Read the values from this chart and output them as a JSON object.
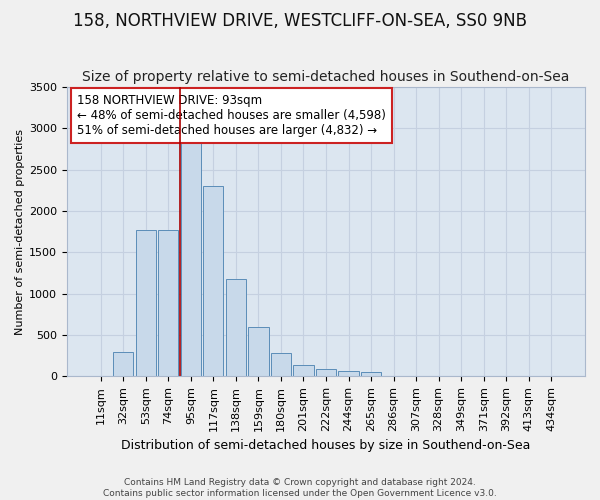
{
  "title": "158, NORTHVIEW DRIVE, WESTCLIFF-ON-SEA, SS0 9NB",
  "subtitle": "Size of property relative to semi-detached houses in Southend-on-Sea",
  "xlabel": "Distribution of semi-detached houses by size in Southend-on-Sea",
  "ylabel": "Number of semi-detached properties",
  "footer_line1": "Contains HM Land Registry data © Crown copyright and database right 2024.",
  "footer_line2": "Contains public sector information licensed under the Open Government Licence v3.0.",
  "annotation_line1": "158 NORTHVIEW DRIVE: 93sqm",
  "annotation_line2": "← 48% of semi-detached houses are smaller (4,598)",
  "annotation_line3": "51% of semi-detached houses are larger (4,832) →",
  "bar_labels": [
    "11sqm",
    "32sqm",
    "53sqm",
    "74sqm",
    "95sqm",
    "117sqm",
    "138sqm",
    "159sqm",
    "180sqm",
    "201sqm",
    "222sqm",
    "244sqm",
    "265sqm",
    "286sqm",
    "307sqm",
    "328sqm",
    "349sqm",
    "371sqm",
    "392sqm",
    "413sqm",
    "434sqm"
  ],
  "bar_values": [
    5,
    300,
    1775,
    1775,
    2900,
    2300,
    1175,
    600,
    285,
    140,
    90,
    60,
    50,
    0,
    0,
    0,
    0,
    0,
    0,
    0,
    0
  ],
  "bar_color": "#c8d9ea",
  "bar_edge_color": "#5b8db8",
  "vline_color": "#aa0000",
  "vline_x_index": 4,
  "ylim": [
    0,
    3500
  ],
  "yticks": [
    0,
    500,
    1000,
    1500,
    2000,
    2500,
    3000,
    3500
  ],
  "grid_color": "#c5d0e0",
  "plot_bg_color": "#dce6f0",
  "fig_bg_color": "#f0f0f0",
  "title_fontsize": 12,
  "subtitle_fontsize": 10,
  "ylabel_fontsize": 8,
  "xlabel_fontsize": 9,
  "annotation_fontsize": 8.5,
  "tick_fontsize": 8,
  "footer_fontsize": 6.5
}
